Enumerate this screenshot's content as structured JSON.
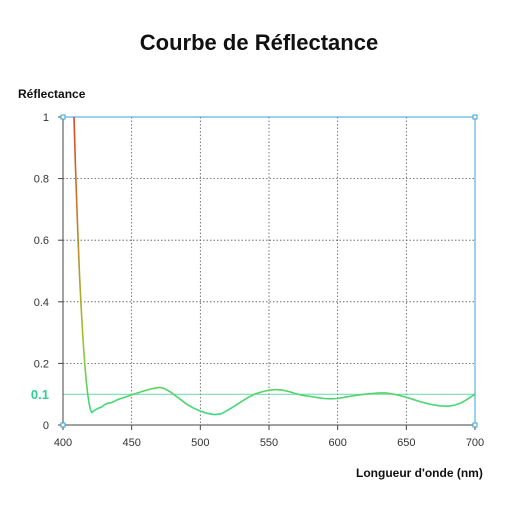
{
  "chart_data": {
    "type": "line",
    "title": "Courbe de Réflectance",
    "xlabel": "Longueur d'onde (nm)",
    "ylabel": "Réflectance",
    "xlim": [
      400,
      700
    ],
    "ylim": [
      0,
      1
    ],
    "x_ticks": [
      "400",
      "450",
      "500",
      "550",
      "600",
      "650",
      "700"
    ],
    "y_ticks": [
      "0",
      "0.2",
      "0.4",
      "0.6",
      "0.8",
      "1"
    ],
    "grid": true,
    "reference_line": {
      "value": 0.1,
      "label": "0.1",
      "color": "#2ecf8f"
    },
    "series": [
      {
        "color_start": "#e0442a",
        "color_end": "#2ddc8c",
        "points": [
          [
            408,
            1.0
          ],
          [
            409,
            0.85
          ],
          [
            410,
            0.72
          ],
          [
            411,
            0.6
          ],
          [
            412,
            0.49
          ],
          [
            413,
            0.4
          ],
          [
            414,
            0.32
          ],
          [
            415,
            0.25
          ],
          [
            416,
            0.19
          ],
          [
            417,
            0.14
          ],
          [
            418,
            0.1
          ],
          [
            419,
            0.07
          ],
          [
            420,
            0.05
          ],
          [
            421,
            0.04
          ],
          [
            422,
            0.045
          ],
          [
            424,
            0.05
          ],
          [
            426,
            0.055
          ],
          [
            428,
            0.058
          ],
          [
            430,
            0.065
          ],
          [
            432,
            0.07
          ],
          [
            435,
            0.072
          ],
          [
            438,
            0.078
          ],
          [
            440,
            0.083
          ],
          [
            445,
            0.09
          ],
          [
            450,
            0.098
          ],
          [
            455,
            0.105
          ],
          [
            460,
            0.112
          ],
          [
            465,
            0.118
          ],
          [
            470,
            0.122
          ],
          [
            473,
            0.12
          ],
          [
            478,
            0.108
          ],
          [
            485,
            0.085
          ],
          [
            490,
            0.068
          ],
          [
            495,
            0.055
          ],
          [
            500,
            0.045
          ],
          [
            505,
            0.038
          ],
          [
            510,
            0.034
          ],
          [
            515,
            0.036
          ],
          [
            520,
            0.048
          ],
          [
            525,
            0.062
          ],
          [
            530,
            0.076
          ],
          [
            535,
            0.09
          ],
          [
            540,
            0.101
          ],
          [
            545,
            0.108
          ],
          [
            550,
            0.113
          ],
          [
            555,
            0.115
          ],
          [
            560,
            0.113
          ],
          [
            565,
            0.108
          ],
          [
            570,
            0.101
          ],
          [
            575,
            0.096
          ],
          [
            580,
            0.093
          ],
          [
            585,
            0.089
          ],
          [
            590,
            0.086
          ],
          [
            595,
            0.085
          ],
          [
            600,
            0.086
          ],
          [
            605,
            0.09
          ],
          [
            610,
            0.094
          ],
          [
            615,
            0.097
          ],
          [
            620,
            0.1
          ],
          [
            625,
            0.102
          ],
          [
            630,
            0.104
          ],
          [
            635,
            0.104
          ],
          [
            640,
            0.101
          ],
          [
            645,
            0.096
          ],
          [
            650,
            0.09
          ],
          [
            655,
            0.083
          ],
          [
            660,
            0.076
          ],
          [
            665,
            0.07
          ],
          [
            670,
            0.065
          ],
          [
            675,
            0.062
          ],
          [
            680,
            0.061
          ],
          [
            685,
            0.064
          ],
          [
            690,
            0.072
          ],
          [
            695,
            0.085
          ],
          [
            700,
            0.1
          ]
        ]
      }
    ]
  }
}
